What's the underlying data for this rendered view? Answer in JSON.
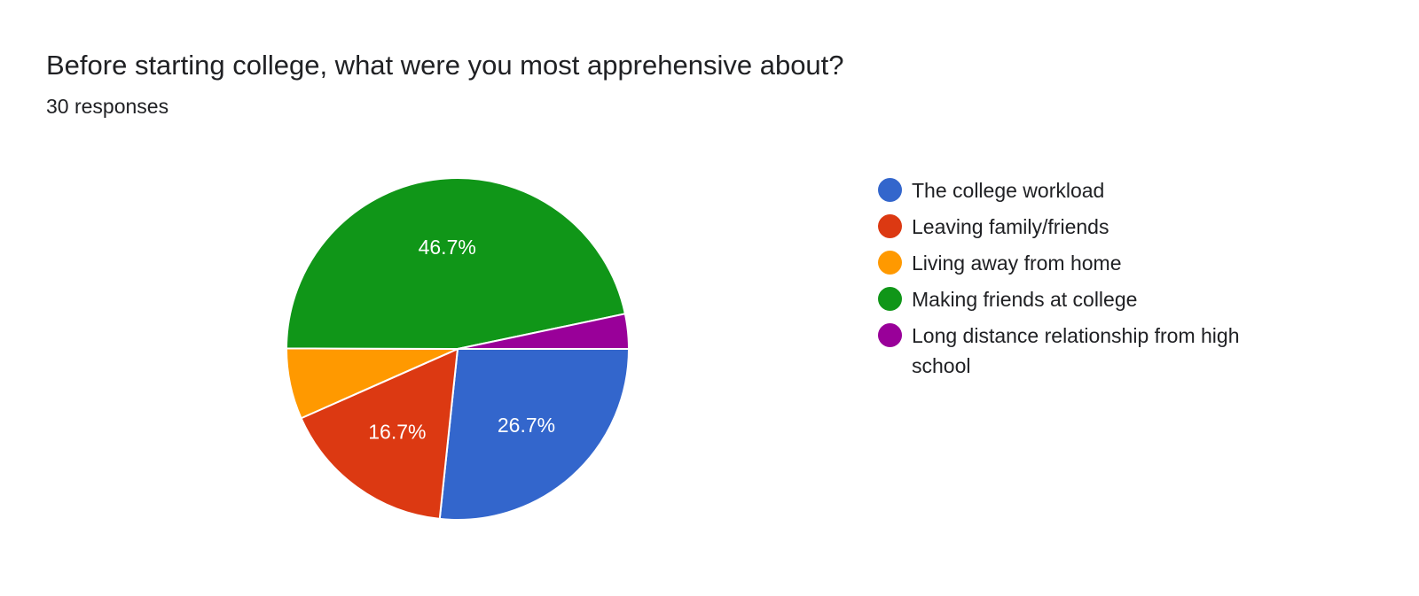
{
  "question": {
    "title": "Before starting college, what were you most apprehensive about?",
    "responses": "30 responses"
  },
  "chart_data": {
    "type": "pie",
    "title": "Before starting college, what were you most apprehensive about?",
    "subtitle": "30 responses",
    "legend_position": "right",
    "slices": [
      {
        "label": "The college workload",
        "value": 26.7,
        "color": "#3366CC",
        "display": "26.7%"
      },
      {
        "label": "Leaving family/friends",
        "value": 16.7,
        "color": "#DC3912",
        "display": "16.7%"
      },
      {
        "label": "Living away from home",
        "value": 6.7,
        "color": "#FF9900",
        "display": ""
      },
      {
        "label": "Making friends at college",
        "value": 46.7,
        "color": "#109618",
        "display": "46.7%"
      },
      {
        "label": "Long distance relationship from high school",
        "value": 3.3,
        "color": "#990099",
        "display": ""
      }
    ]
  }
}
